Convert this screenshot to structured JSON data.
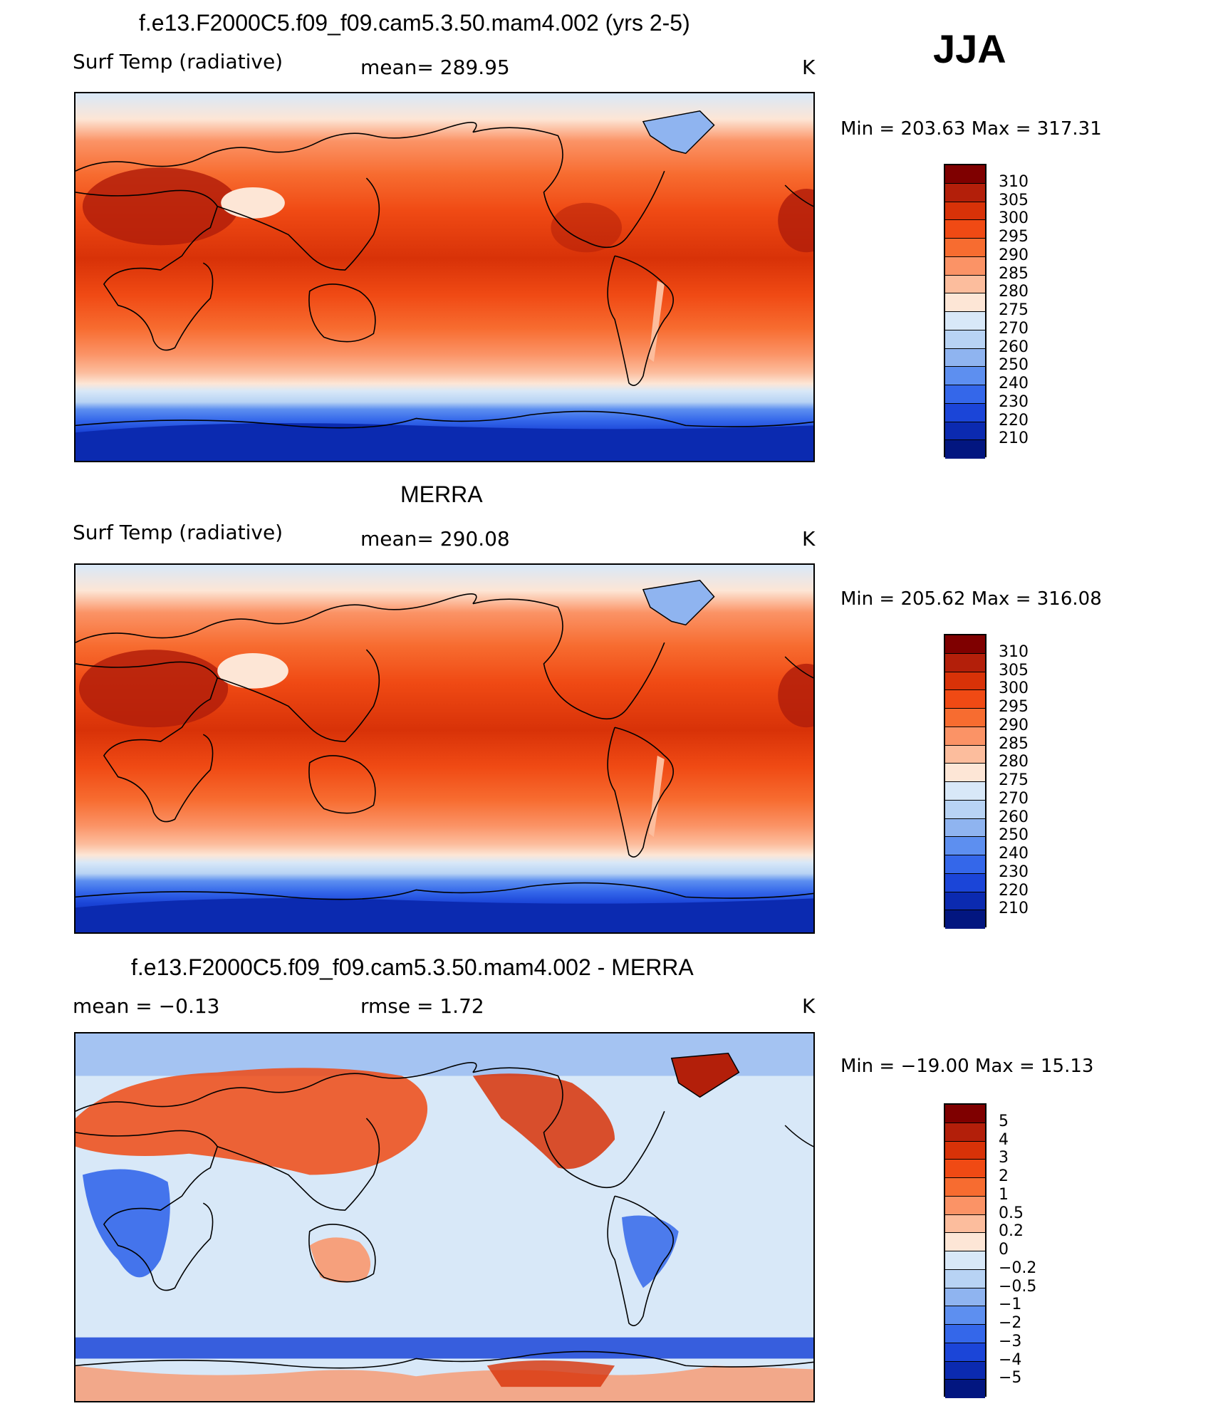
{
  "season": "JJA",
  "panels": [
    {
      "id": "model",
      "title": "f.e13.F2000C5.f09_f09.cam5.3.50.mam4.002 (yrs 2-5)",
      "variable": "Surf Temp (radiative)",
      "stat_text": "mean=  289.95",
      "units": "K",
      "minmax": "Min  =  203.63  Max  =  317.31"
    },
    {
      "id": "obs",
      "title": "MERRA",
      "variable": "Surf Temp (radiative)",
      "stat_text": "mean=  290.08",
      "units": "K",
      "minmax": "Min  =  205.62  Max  =  316.08"
    },
    {
      "id": "diff",
      "title": "f.e13.F2000C5.f09_f09.cam5.3.50.mam4.002 - MERRA",
      "stat_left": "mean  =     −0.13",
      "stat_text": "rmse  =      1.72",
      "units": "K",
      "minmax": "Min  =  −19.00  Max  =     15.13"
    }
  ],
  "colorbars": {
    "temperature": {
      "labels": [
        "310",
        "305",
        "300",
        "295",
        "290",
        "285",
        "280",
        "275",
        "270",
        "260",
        "250",
        "240",
        "230",
        "220",
        "210"
      ],
      "colors": [
        "#7f0000",
        "#b31f0a",
        "#d83208",
        "#f04a14",
        "#f76c30",
        "#fb9366",
        "#fcbd9d",
        "#fde6d6",
        "#d8e8f8",
        "#b8d3f4",
        "#8fb4f0",
        "#5d8ff0",
        "#3467ea",
        "#1b45d8",
        "#0b2ab0",
        "#021680"
      ]
    },
    "difference": {
      "labels": [
        "5",
        "4",
        "3",
        "2",
        "1",
        "0.5",
        "0.2",
        "0",
        "−0.2",
        "−0.5",
        "−1",
        "−2",
        "−3",
        "−4",
        "−5"
      ],
      "colors": [
        "#7f0000",
        "#b31f0a",
        "#d83208",
        "#f04a14",
        "#f76c30",
        "#fb9366",
        "#fcbd9d",
        "#fde6d6",
        "#d8e8f8",
        "#b8d3f4",
        "#8fb4f0",
        "#5d8ff0",
        "#3467ea",
        "#1b45d8",
        "#0b2ab0",
        "#021680"
      ]
    }
  }
}
